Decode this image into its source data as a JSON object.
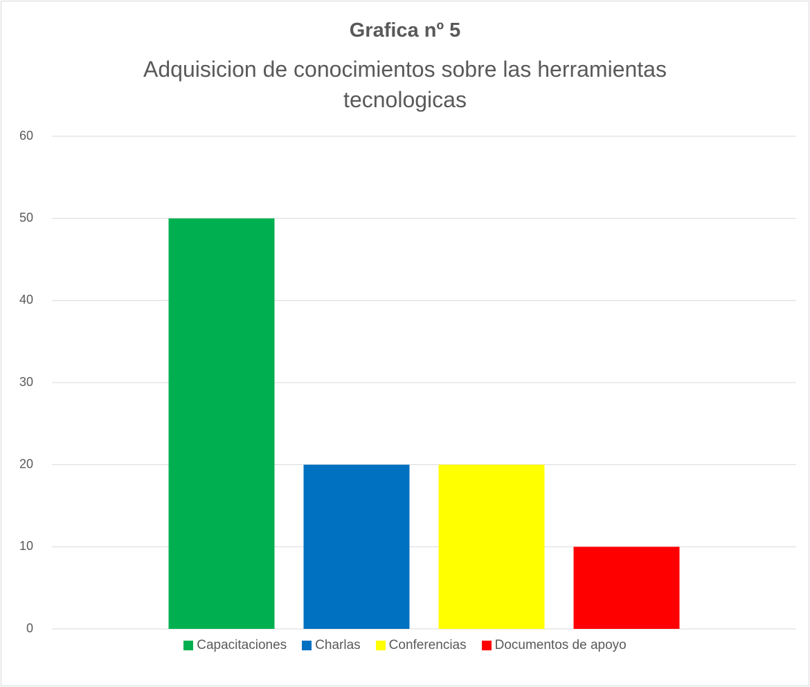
{
  "chart_data": {
    "type": "bar",
    "title": "Grafica nº 5",
    "subtitle": "Adquisicion de conocimientos sobre las herramientas tecnologicas",
    "categories": [
      null
    ],
    "series": [
      {
        "name": "Capacitaciones",
        "color": "#00b050",
        "values": [
          50
        ]
      },
      {
        "name": "Charlas",
        "color": "#0070c0",
        "values": [
          20
        ]
      },
      {
        "name": "Conferencias",
        "color": "#ffff00",
        "values": [
          20
        ]
      },
      {
        "name": "Documentos de apoyo",
        "color": "#ff0000",
        "values": [
          10
        ]
      }
    ],
    "ylim": [
      0,
      60
    ],
    "yticks": [
      0,
      10,
      20,
      30,
      40,
      50,
      60
    ],
    "grid": true,
    "legend": "bottom"
  }
}
